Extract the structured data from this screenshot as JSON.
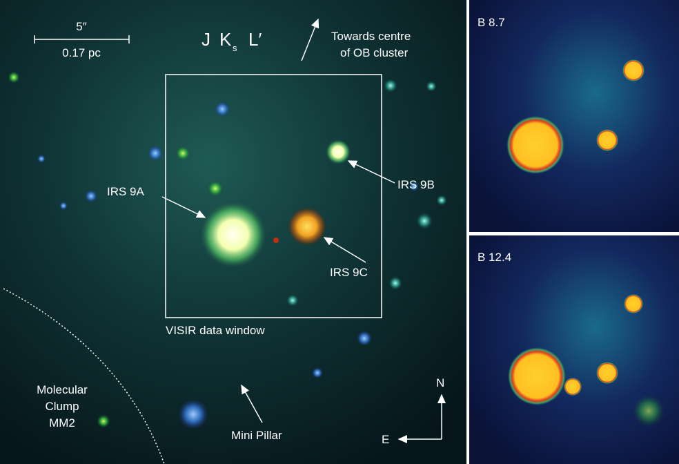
{
  "scale_bar": {
    "angle": "5″",
    "distance": "0.17 pc"
  },
  "filters": {
    "j": "J",
    "k": "K",
    "k_sub": "s",
    "l": "L′"
  },
  "labels": {
    "towards_1": "Towards centre",
    "towards_2": "of OB cluster",
    "irs9a": "IRS 9A",
    "irs9b": "IRS 9B",
    "irs9c": "IRS 9C",
    "window": "VISIR data window",
    "clump_1": "Molecular",
    "clump_2": "Clump",
    "clump_3": "MM2",
    "pillar": "Mini Pillar",
    "north": "N",
    "east": "E"
  },
  "panels": [
    {
      "label": "B 8.7"
    },
    {
      "label": "B 12.4"
    }
  ]
}
